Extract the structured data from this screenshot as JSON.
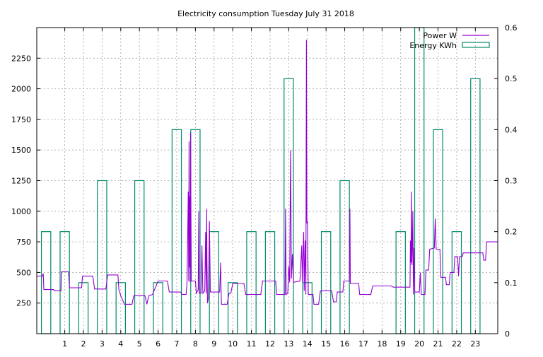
{
  "chart_data": {
    "type": "line",
    "title": "Electricity consumption Tuesday July 31 2018",
    "xlim": [
      -0.5,
      24.2
    ],
    "ylim": [
      0,
      2500
    ],
    "y2lim": [
      0,
      0.6
    ],
    "x_ticks": [
      1,
      2,
      3,
      4,
      5,
      6,
      7,
      8,
      9,
      10,
      11,
      12,
      13,
      14,
      15,
      16,
      17,
      18,
      19,
      20,
      21,
      22,
      23
    ],
    "y_ticks": [
      250,
      500,
      750,
      1000,
      1250,
      1500,
      1750,
      2000,
      2250
    ],
    "y2_ticks": [
      0,
      0.1,
      0.2,
      0.3,
      0.4,
      0.5,
      0.6
    ],
    "grid": true,
    "legend_position": "top-right",
    "series": [
      {
        "name": "Power W",
        "axis": "y1",
        "color": "#9400d3",
        "points": [
          [
            -0.5,
            470
          ],
          [
            -0.2,
            470
          ],
          [
            -0.15,
            490
          ],
          [
            -0.12,
            360
          ],
          [
            0.4,
            360
          ],
          [
            0.45,
            350
          ],
          [
            0.8,
            350
          ],
          [
            0.82,
            505
          ],
          [
            1.2,
            505
          ],
          [
            1.25,
            375
          ],
          [
            1.9,
            375
          ],
          [
            1.95,
            470
          ],
          [
            2.5,
            470
          ],
          [
            2.6,
            365
          ],
          [
            3.2,
            365
          ],
          [
            3.3,
            480
          ],
          [
            3.85,
            480
          ],
          [
            3.9,
            360
          ],
          [
            4.0,
            310
          ],
          [
            4.2,
            240
          ],
          [
            4.6,
            240
          ],
          [
            4.7,
            310
          ],
          [
            5.3,
            310
          ],
          [
            5.4,
            240
          ],
          [
            5.5,
            310
          ],
          [
            5.7,
            320
          ],
          [
            6.0,
            430
          ],
          [
            6.5,
            430
          ],
          [
            6.6,
            340
          ],
          [
            7.2,
            340
          ],
          [
            7.3,
            320
          ],
          [
            7.5,
            320
          ],
          [
            7.55,
            410
          ],
          [
            7.62,
            1160
          ],
          [
            7.64,
            430
          ],
          [
            7.66,
            1570
          ],
          [
            7.68,
            540
          ],
          [
            7.7,
            1120
          ],
          [
            7.72,
            420
          ],
          [
            7.74,
            1640
          ],
          [
            7.78,
            430
          ],
          [
            8.0,
            430
          ],
          [
            8.05,
            330
          ],
          [
            8.15,
            360
          ],
          [
            8.18,
            1000
          ],
          [
            8.2,
            330
          ],
          [
            8.3,
            330
          ],
          [
            8.35,
            720
          ],
          [
            8.4,
            330
          ],
          [
            8.5,
            350
          ],
          [
            8.55,
            830
          ],
          [
            8.58,
            330
          ],
          [
            8.6,
            1020
          ],
          [
            8.62,
            600
          ],
          [
            8.65,
            250
          ],
          [
            8.7,
            300
          ],
          [
            8.75,
            920
          ],
          [
            8.8,
            340
          ],
          [
            9.3,
            340
          ],
          [
            9.35,
            580
          ],
          [
            9.38,
            320
          ],
          [
            9.4,
            240
          ],
          [
            9.7,
            240
          ],
          [
            9.8,
            330
          ],
          [
            9.9,
            330
          ],
          [
            10.0,
            410
          ],
          [
            10.6,
            410
          ],
          [
            10.7,
            320
          ],
          [
            11.5,
            320
          ],
          [
            11.6,
            430
          ],
          [
            12.3,
            430
          ],
          [
            12.35,
            320
          ],
          [
            12.8,
            320
          ],
          [
            12.83,
            1020
          ],
          [
            12.86,
            320
          ],
          [
            12.95,
            330
          ],
          [
            13.0,
            550
          ],
          [
            13.05,
            420
          ],
          [
            13.1,
            1500
          ],
          [
            13.14,
            450
          ],
          [
            13.2,
            650
          ],
          [
            13.25,
            420
          ],
          [
            13.6,
            430
          ],
          [
            13.7,
            720
          ],
          [
            13.73,
            420
          ],
          [
            13.8,
            830
          ],
          [
            13.83,
            350
          ],
          [
            13.88,
            760
          ],
          [
            13.92,
            320
          ],
          [
            13.95,
            2400
          ],
          [
            13.97,
            900
          ],
          [
            14.0,
            920
          ],
          [
            14.05,
            320
          ],
          [
            14.3,
            320
          ],
          [
            14.35,
            240
          ],
          [
            14.6,
            240
          ],
          [
            14.7,
            350
          ],
          [
            15.3,
            350
          ],
          [
            15.4,
            260
          ],
          [
            15.55,
            260
          ],
          [
            15.6,
            340
          ],
          [
            15.9,
            340
          ],
          [
            15.95,
            430
          ],
          [
            16.25,
            430
          ],
          [
            16.28,
            1020
          ],
          [
            16.3,
            410
          ],
          [
            16.75,
            410
          ],
          [
            16.8,
            320
          ],
          [
            17.4,
            320
          ],
          [
            17.5,
            390
          ],
          [
            18.5,
            390
          ],
          [
            18.6,
            380
          ],
          [
            19.5,
            380
          ],
          [
            19.52,
            760
          ],
          [
            19.55,
            580
          ],
          [
            19.58,
            1160
          ],
          [
            19.6,
            560
          ],
          [
            19.63,
            760
          ],
          [
            19.65,
            1000
          ],
          [
            19.68,
            320
          ],
          [
            19.72,
            700
          ],
          [
            19.75,
            340
          ],
          [
            20.0,
            340
          ],
          [
            20.05,
            500
          ],
          [
            20.1,
            320
          ],
          [
            20.3,
            320
          ],
          [
            20.35,
            520
          ],
          [
            20.5,
            520
          ],
          [
            20.55,
            690
          ],
          [
            20.8,
            700
          ],
          [
            20.85,
            940
          ],
          [
            20.9,
            690
          ],
          [
            21.1,
            690
          ],
          [
            21.15,
            460
          ],
          [
            21.4,
            460
          ],
          [
            21.45,
            400
          ],
          [
            21.6,
            400
          ],
          [
            21.65,
            500
          ],
          [
            21.85,
            500
          ],
          [
            21.9,
            630
          ],
          [
            22.05,
            630
          ],
          [
            22.1,
            470
          ],
          [
            22.15,
            630
          ],
          [
            22.3,
            630
          ],
          [
            22.35,
            660
          ],
          [
            23.4,
            660
          ],
          [
            23.45,
            600
          ],
          [
            23.55,
            600
          ],
          [
            23.6,
            750
          ],
          [
            24.2,
            750
          ]
        ]
      },
      {
        "name": "Energy KWh",
        "axis": "y2",
        "color": "#008b6b",
        "hours": [
          0,
          1,
          2,
          3,
          4,
          5,
          6,
          7,
          8,
          9,
          10,
          11,
          12,
          13,
          14,
          15,
          16,
          17,
          18,
          19,
          20,
          21,
          22,
          23
        ],
        "values": [
          0.2,
          0.2,
          0.1,
          0.3,
          0.1,
          0.3,
          0.1,
          0.4,
          0.4,
          0.2,
          0.1,
          0.2,
          0.2,
          0.5,
          0.1,
          0.2,
          0.3,
          0.0,
          0.0,
          0.2,
          0.6,
          0.4,
          0.2,
          0.5
        ]
      }
    ]
  }
}
